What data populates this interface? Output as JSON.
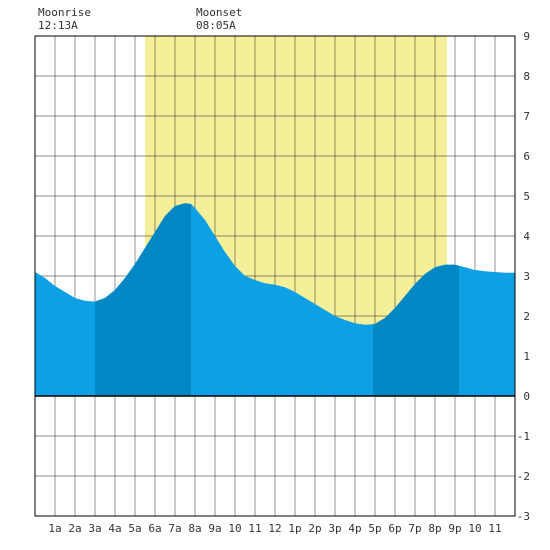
{
  "moon": {
    "moonrise_label": "Moonrise",
    "moonrise_time": "12:13A",
    "moonset_label": "Moonset",
    "moonset_time": "08:05A"
  },
  "chart_data": {
    "type": "area",
    "title": "",
    "xlabel": "",
    "ylabel": "",
    "xlim": [
      0,
      24
    ],
    "ylim": [
      -3,
      9
    ],
    "grid": true,
    "x_tick_labels": [
      "1a",
      "2a",
      "3a",
      "4a",
      "5a",
      "6a",
      "7a",
      "8a",
      "9a",
      "10",
      "11",
      "12",
      "1p",
      "2p",
      "3p",
      "4p",
      "5p",
      "6p",
      "7p",
      "8p",
      "9p",
      "10",
      "11"
    ],
    "y_ticks": [
      -3,
      -2,
      -1,
      0,
      1,
      2,
      3,
      4,
      5,
      6,
      7,
      8,
      9
    ],
    "daylight": {
      "start": 5.5,
      "end": 20.6
    },
    "tide_series": {
      "x": [
        0,
        0.5,
        1,
        1.5,
        2,
        2.5,
        3,
        3.5,
        4,
        4.5,
        5,
        5.5,
        6,
        6.5,
        7,
        7.5,
        7.8,
        8,
        8.5,
        9,
        9.5,
        10,
        10.5,
        11,
        11.5,
        12,
        12.5,
        13,
        13.5,
        14,
        14.5,
        15,
        15.5,
        16,
        16.5,
        17,
        17.5,
        18,
        18.5,
        19,
        19.5,
        20,
        20.5,
        21,
        21.5,
        22,
        22.5,
        23,
        23.5,
        24
      ],
      "y": [
        3.1,
        2.95,
        2.75,
        2.6,
        2.45,
        2.38,
        2.36,
        2.45,
        2.65,
        2.95,
        3.3,
        3.7,
        4.1,
        4.5,
        4.75,
        4.82,
        4.8,
        4.7,
        4.4,
        4.0,
        3.6,
        3.25,
        3.0,
        2.9,
        2.82,
        2.78,
        2.72,
        2.6,
        2.45,
        2.3,
        2.15,
        2.0,
        1.9,
        1.82,
        1.78,
        1.8,
        1.95,
        2.2,
        2.5,
        2.8,
        3.05,
        3.22,
        3.28,
        3.28,
        3.22,
        3.15,
        3.12,
        3.1,
        3.08,
        3.08
      ]
    },
    "emphasized_ranges": [
      [
        3,
        7.8
      ],
      [
        16.9,
        21.2
      ]
    ],
    "colors": {
      "daylight": "#f5ef9a",
      "tide": "#0ea0e4",
      "tide_emphasis": "#0087c4",
      "grid": "#000000",
      "zero_line": "#000000",
      "tick_text": "#333333"
    }
  }
}
